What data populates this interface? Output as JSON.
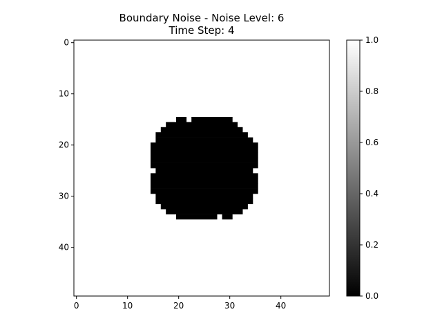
{
  "chart_data": {
    "type": "heatmap",
    "title_line1": "Boundary Noise - Noise Level: 6",
    "title_line2": "Time Step: 4",
    "grid_size": 50,
    "x_ticks": [
      0,
      10,
      20,
      30,
      40
    ],
    "y_ticks": [
      0,
      10,
      20,
      30,
      40
    ],
    "colormap": "gray",
    "background_value": 1,
    "foreground_value": 0,
    "value_range": [
      0.0,
      1.0
    ],
    "colorbar_ticks": [
      "0.0",
      "0.2",
      "0.4",
      "0.6",
      "0.8",
      "1.0"
    ],
    "blob_rows": [
      {
        "row": 15,
        "cols": [
          [
            20,
            21
          ],
          [
            23,
            30
          ]
        ]
      },
      {
        "row": 16,
        "cols": [
          [
            18,
            31
          ]
        ]
      },
      {
        "row": 17,
        "cols": [
          [
            17,
            32
          ]
        ]
      },
      {
        "row": 18,
        "cols": [
          [
            16,
            33
          ]
        ]
      },
      {
        "row": 19,
        "cols": [
          [
            16,
            34
          ]
        ]
      },
      {
        "row": 20,
        "cols": [
          [
            15,
            35
          ]
        ]
      },
      {
        "row": 21,
        "cols": [
          [
            15,
            35
          ]
        ]
      },
      {
        "row": 22,
        "cols": [
          [
            15,
            35
          ]
        ]
      },
      {
        "row": 23,
        "cols": [
          [
            15,
            35
          ]
        ]
      },
      {
        "row": 24,
        "cols": [
          [
            15,
            35
          ]
        ]
      },
      {
        "row": 25,
        "cols": [
          [
            16,
            34
          ]
        ]
      },
      {
        "row": 26,
        "cols": [
          [
            15,
            35
          ]
        ]
      },
      {
        "row": 27,
        "cols": [
          [
            15,
            35
          ]
        ]
      },
      {
        "row": 28,
        "cols": [
          [
            15,
            35
          ]
        ]
      },
      {
        "row": 29,
        "cols": [
          [
            15,
            35
          ]
        ]
      },
      {
        "row": 30,
        "cols": [
          [
            16,
            34
          ]
        ]
      },
      {
        "row": 31,
        "cols": [
          [
            16,
            34
          ]
        ]
      },
      {
        "row": 32,
        "cols": [
          [
            17,
            33
          ]
        ]
      },
      {
        "row": 33,
        "cols": [
          [
            18,
            32
          ]
        ]
      },
      {
        "row": 34,
        "cols": [
          [
            20,
            27
          ],
          [
            29,
            30
          ]
        ]
      }
    ]
  }
}
